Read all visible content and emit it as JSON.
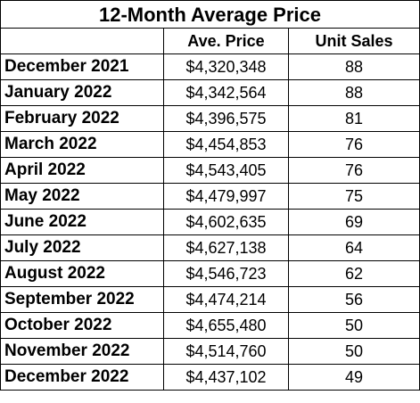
{
  "title": "12-Month Average Price",
  "columns": {
    "month": "",
    "price": "Ave. Price",
    "units": "Unit Sales"
  },
  "rows": [
    {
      "month": "December 2021",
      "price": "$4,320,348",
      "units": "88"
    },
    {
      "month": "January 2022",
      "price": "$4,342,564",
      "units": "88"
    },
    {
      "month": "February 2022",
      "price": "$4,396,575",
      "units": "81"
    },
    {
      "month": "March 2022",
      "price": "$4,454,853",
      "units": "76"
    },
    {
      "month": "April 2022",
      "price": "$4,543,405",
      "units": "76"
    },
    {
      "month": "May 2022",
      "price": "$4,479,997",
      "units": "75"
    },
    {
      "month": "June 2022",
      "price": "$4,602,635",
      "units": "69"
    },
    {
      "month": "July 2022",
      "price": "$4,627,138",
      "units": "64"
    },
    {
      "month": "August 2022",
      "price": "$4,546,723",
      "units": "62"
    },
    {
      "month": "September 2022",
      "price": "$4,474,214",
      "units": "56"
    },
    {
      "month": "October 2022",
      "price": "$4,655,480",
      "units": "50"
    },
    {
      "month": "November 2022",
      "price": "$4,514,760",
      "units": "50"
    },
    {
      "month": "December 2022",
      "price": "$4,437,102",
      "units": "49"
    }
  ]
}
